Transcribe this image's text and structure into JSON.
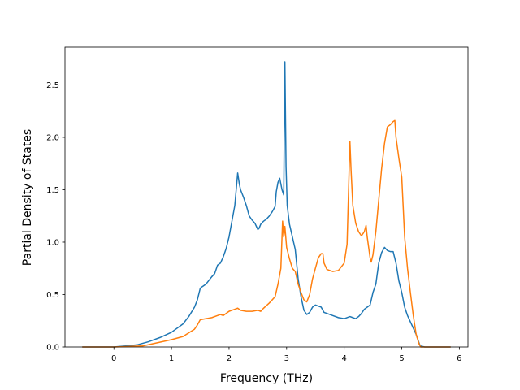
{
  "chart_data": {
    "type": "line",
    "title": "",
    "xlabel": "Frequency (THz)",
    "ylabel": "Partial Density of States",
    "xlim": [
      -0.85,
      6.15
    ],
    "ylim": [
      0.0,
      2.86
    ],
    "xticks": [
      0,
      1,
      2,
      3,
      4,
      5,
      6
    ],
    "xtick_labels": [
      "0",
      "1",
      "2",
      "3",
      "4",
      "5",
      "6"
    ],
    "yticks": [
      0.0,
      0.5,
      1.0,
      1.5,
      2.0,
      2.5
    ],
    "ytick_labels": [
      "0.0",
      "0.5",
      "1.0",
      "1.5",
      "2.0",
      "2.5"
    ],
    "grid": false,
    "legend": "none",
    "series": [
      {
        "color": "#1f77b4",
        "x": [
          -0.55,
          0.0,
          0.2,
          0.4,
          0.6,
          0.8,
          1.0,
          1.2,
          1.3,
          1.4,
          1.45,
          1.5,
          1.52,
          1.6,
          1.7,
          1.75,
          1.8,
          1.85,
          1.9,
          1.95,
          2.0,
          2.05,
          2.1,
          2.15,
          2.18,
          2.2,
          2.25,
          2.3,
          2.35,
          2.4,
          2.45,
          2.5,
          2.52,
          2.55,
          2.6,
          2.65,
          2.7,
          2.75,
          2.8,
          2.82,
          2.85,
          2.88,
          2.92,
          2.95,
          2.97,
          2.99,
          3.01,
          3.05,
          3.1,
          3.15,
          3.2,
          3.25,
          3.3,
          3.35,
          3.4,
          3.45,
          3.5,
          3.55,
          3.6,
          3.65,
          3.7,
          3.8,
          3.9,
          4.0,
          4.1,
          4.15,
          4.2,
          4.25,
          4.3,
          4.35,
          4.4,
          4.45,
          4.5,
          4.55,
          4.6,
          4.65,
          4.7,
          4.75,
          4.8,
          4.85,
          4.9,
          4.95,
          5.0,
          5.05,
          5.1,
          5.15,
          5.2,
          5.25,
          5.3,
          5.32,
          5.4,
          5.85
        ],
        "y": [
          0.0,
          0.0,
          0.01,
          0.02,
          0.05,
          0.09,
          0.14,
          0.22,
          0.29,
          0.38,
          0.45,
          0.56,
          0.57,
          0.6,
          0.67,
          0.7,
          0.78,
          0.8,
          0.86,
          0.94,
          1.05,
          1.2,
          1.35,
          1.66,
          1.55,
          1.5,
          1.43,
          1.35,
          1.25,
          1.21,
          1.18,
          1.12,
          1.13,
          1.17,
          1.2,
          1.22,
          1.25,
          1.29,
          1.34,
          1.48,
          1.57,
          1.61,
          1.5,
          1.45,
          2.72,
          1.72,
          1.35,
          1.17,
          1.05,
          0.93,
          0.65,
          0.48,
          0.35,
          0.31,
          0.33,
          0.38,
          0.4,
          0.39,
          0.38,
          0.33,
          0.32,
          0.3,
          0.28,
          0.27,
          0.29,
          0.28,
          0.27,
          0.29,
          0.32,
          0.36,
          0.38,
          0.4,
          0.52,
          0.6,
          0.8,
          0.9,
          0.95,
          0.92,
          0.91,
          0.91,
          0.8,
          0.63,
          0.52,
          0.38,
          0.3,
          0.24,
          0.18,
          0.12,
          0.04,
          0.01,
          0.0,
          0.0
        ]
      },
      {
        "color": "#ff7f0e",
        "x": [
          -0.55,
          0.0,
          0.5,
          1.0,
          1.2,
          1.4,
          1.45,
          1.5,
          1.6,
          1.7,
          1.8,
          1.85,
          1.9,
          2.0,
          2.05,
          2.1,
          2.15,
          2.2,
          2.3,
          2.4,
          2.5,
          2.55,
          2.6,
          2.7,
          2.8,
          2.85,
          2.9,
          2.93,
          2.95,
          2.97,
          3.0,
          3.05,
          3.1,
          3.15,
          3.2,
          3.25,
          3.3,
          3.35,
          3.4,
          3.45,
          3.5,
          3.55,
          3.6,
          3.63,
          3.65,
          3.7,
          3.8,
          3.9,
          4.0,
          4.05,
          4.1,
          4.12,
          4.15,
          4.2,
          4.25,
          4.3,
          4.35,
          4.38,
          4.4,
          4.45,
          4.47,
          4.5,
          4.55,
          4.6,
          4.65,
          4.7,
          4.75,
          4.8,
          4.85,
          4.88,
          4.9,
          4.95,
          5.0,
          5.05,
          5.1,
          5.15,
          5.2,
          5.25,
          5.3,
          5.33,
          5.4,
          5.85
        ],
        "y": [
          0.0,
          0.0,
          0.01,
          0.07,
          0.1,
          0.17,
          0.21,
          0.26,
          0.27,
          0.28,
          0.3,
          0.31,
          0.3,
          0.34,
          0.35,
          0.36,
          0.37,
          0.35,
          0.34,
          0.34,
          0.35,
          0.34,
          0.37,
          0.42,
          0.48,
          0.6,
          0.75,
          1.2,
          1.05,
          1.15,
          0.95,
          0.84,
          0.75,
          0.72,
          0.6,
          0.52,
          0.45,
          0.43,
          0.5,
          0.65,
          0.75,
          0.85,
          0.89,
          0.89,
          0.8,
          0.74,
          0.72,
          0.73,
          0.8,
          0.98,
          1.96,
          1.68,
          1.35,
          1.18,
          1.1,
          1.06,
          1.1,
          1.16,
          1.05,
          0.85,
          0.81,
          0.88,
          1.1,
          1.4,
          1.7,
          1.94,
          2.1,
          2.12,
          2.15,
          2.16,
          2.0,
          1.8,
          1.62,
          1.05,
          0.75,
          0.52,
          0.3,
          0.12,
          0.03,
          0.0,
          0.0,
          0.0
        ]
      }
    ]
  }
}
